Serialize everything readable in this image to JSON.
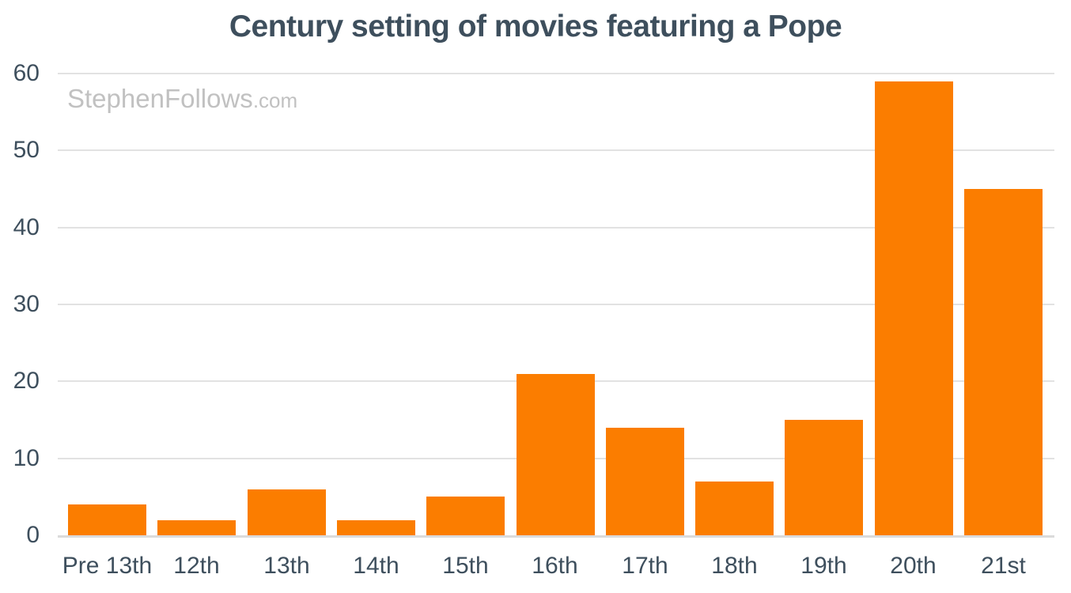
{
  "title": "Century setting of movies featuring a Pope",
  "watermark": {
    "main": "StephenFollows",
    "suffix": ".com"
  },
  "chart_data": {
    "type": "bar",
    "title": "Century setting of movies featuring a Pope",
    "categories": [
      "Pre 13th",
      "12th",
      "13th",
      "14th",
      "15th",
      "16th",
      "17th",
      "18th",
      "19th",
      "20th",
      "21st"
    ],
    "values": [
      4,
      2,
      6,
      2,
      5,
      21,
      14,
      7,
      15,
      59,
      45
    ],
    "xlabel": "",
    "ylabel": "",
    "ylim": [
      0,
      60
    ],
    "yticks": [
      0,
      10,
      20,
      30,
      40,
      50,
      60
    ],
    "grid": "horizontal",
    "legend": "none"
  },
  "colors": {
    "background": "#FFFFFF",
    "bar": "#FB7D00",
    "title_text": "#3E4F5D",
    "tick_text": "#3E4F5D",
    "gridline": "#E2E2E2",
    "baseline": "#DBDBDB",
    "watermark": "#C1C1C1"
  }
}
